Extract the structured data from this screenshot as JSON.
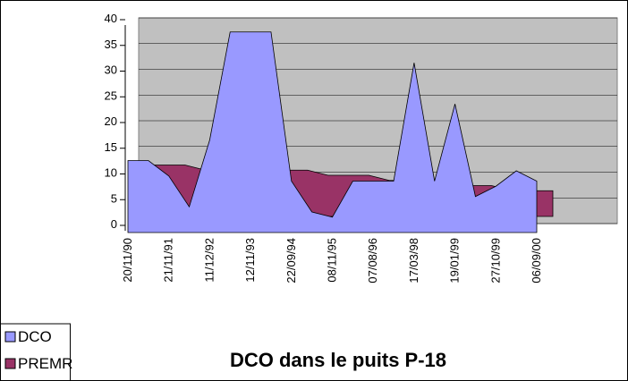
{
  "chart_data": {
    "type": "area",
    "title": "DCO dans le puits P-18",
    "categories": [
      "20/11/90",
      null,
      "21/11/91",
      null,
      "11/12/92",
      null,
      "12/11/93",
      null,
      "22/09/94",
      null,
      "08/11/95",
      null,
      "07/08/96",
      null,
      "17/03/98",
      null,
      "19/01/99",
      null,
      "27/10/99",
      null,
      "06/09/00"
    ],
    "series": [
      {
        "name": "DCO",
        "color": "#9999ff",
        "values": [
          14,
          14,
          11,
          5,
          18,
          39,
          39,
          39,
          10,
          4,
          3,
          10,
          10,
          10,
          33,
          10,
          25,
          7,
          9,
          12,
          10
        ]
      },
      {
        "name": "PREMR",
        "color": "#993366",
        "values": [
          10,
          10,
          10,
          9,
          9,
          9,
          9,
          9,
          9,
          8,
          8,
          8,
          7,
          7,
          7,
          6,
          6,
          6,
          5,
          5,
          5
        ]
      }
    ],
    "ylim": [
      0,
      40
    ],
    "yticks": [
      0,
      5,
      10,
      15,
      20,
      25,
      30,
      35,
      40
    ],
    "grid": true,
    "legend": "bottom-left"
  }
}
